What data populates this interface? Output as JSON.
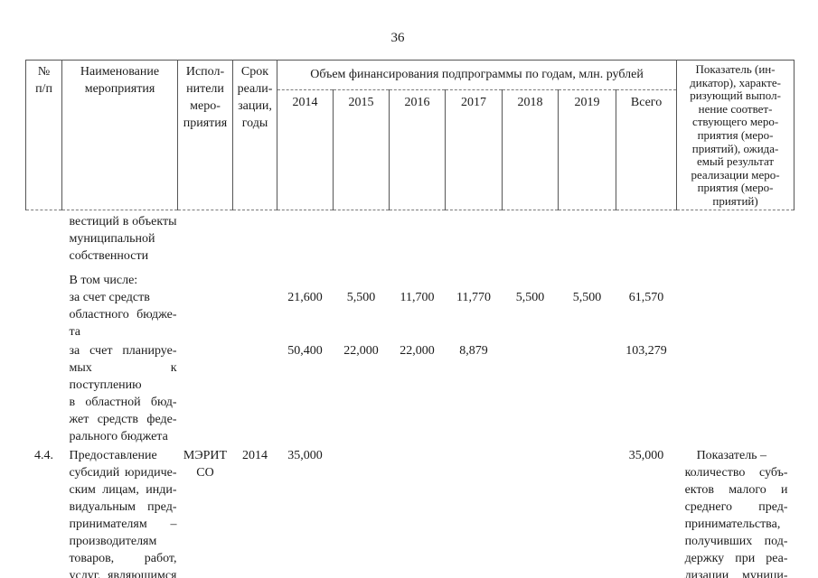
{
  "page": {
    "number": "36"
  },
  "header": {
    "num": [
      {
        "t": "№"
      },
      {
        "t": "п/п"
      }
    ],
    "name": [
      {
        "t": "Наименование"
      },
      {
        "t": "мероприятия"
      }
    ],
    "exec": [
      {
        "t": "Испол-"
      },
      {
        "t": "нители"
      },
      {
        "t": "меро-"
      },
      {
        "t": "приятия"
      }
    ],
    "term": [
      {
        "t": "Срок"
      },
      {
        "t": "реали-"
      },
      {
        "t": "зации,"
      },
      {
        "t": "годы"
      }
    ],
    "finance_title": "Объем финансирования подпрограммы по годам, млн. рублей",
    "years": [
      "2014",
      "2015",
      "2016",
      "2017",
      "2018",
      "2019",
      "Всего"
    ],
    "indicator": [
      {
        "t": "Показатель (ин-"
      },
      {
        "t": "дикатор), характе-"
      },
      {
        "t": "ризующий выпол-"
      },
      {
        "t": "нение соответ-"
      },
      {
        "t": "ствующего меро-"
      },
      {
        "t": "приятия (меро-"
      },
      {
        "t": "приятий), ожида-"
      },
      {
        "t": "емый результат"
      },
      {
        "t": "реализации меро-"
      },
      {
        "t": "приятия (меро-"
      },
      {
        "t": "приятий)"
      }
    ]
  },
  "rows": [
    {
      "name": [
        {
          "t": "вестиций в объекты",
          "f": true
        },
        {
          "t": "муниципальной"
        },
        {
          "t": "собственности"
        }
      ]
    },
    {
      "name": [
        {
          "t": "В том числе:"
        },
        {
          "t": "за счет средств"
        },
        {
          "t": "областного бюдже-",
          "f": true
        },
        {
          "t": "та"
        }
      ],
      "values": [
        "21,600",
        "5,500",
        "11,700",
        "11,770",
        "5,500",
        "5,500",
        "61,570"
      ]
    },
    {
      "name": [
        {
          "t": "за счет планируе-",
          "f": true
        },
        {
          "t": "мых к поступлению",
          "f": true
        },
        {
          "t": "в областной бюд-",
          "f": true
        },
        {
          "t": "жет средств феде-",
          "f": true
        },
        {
          "t": "рального бюджета"
        }
      ],
      "values": [
        "50,400",
        "22,000",
        "22,000",
        "8,879",
        "",
        "",
        "103,279"
      ]
    },
    {
      "num": "4.4.",
      "name": [
        {
          "t": "Предоставление"
        },
        {
          "t": "субсидий юридиче-",
          "f": true
        },
        {
          "t": "ским лицам, инди-",
          "f": true
        },
        {
          "t": "видуальным пред-",
          "f": true
        },
        {
          "t": "принимателям –",
          "f": true
        },
        {
          "t": "производителям"
        },
        {
          "t": "товаров, работ,",
          "f": true
        },
        {
          "t": "услуг, являющимся",
          "f": true
        }
      ],
      "exec": [
        {
          "t": "МЭРИТ"
        },
        {
          "t": "СО"
        }
      ],
      "term": "2014",
      "values": [
        "35,000",
        "",
        "",
        "",
        "",
        "",
        "35,000"
      ],
      "indicator": [
        {
          "t": "Показатель –"
        },
        {
          "t": "количество субъ-",
          "f": true
        },
        {
          "t": "ектов малого и",
          "f": true
        },
        {
          "t": "среднего пред-",
          "f": true
        },
        {
          "t": "принимательства,"
        },
        {
          "t": "получивших под-",
          "f": true
        },
        {
          "t": "держку при реа-",
          "f": true
        },
        {
          "t": "лизации муници-",
          "f": true
        }
      ]
    }
  ]
}
